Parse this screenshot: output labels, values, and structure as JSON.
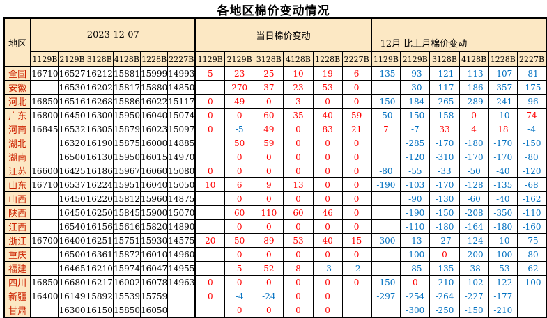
{
  "title": "各地区棉价变动情况",
  "colors": {
    "price_text": "#000000",
    "change_positive": "#FF0000",
    "change_negative": "#0070C0",
    "region_text": "#CC2200",
    "header_bg": "#FCE8C4",
    "border": "#000000"
  },
  "chart_data": {
    "type": "table",
    "title": "各地区棉价变动情况",
    "corner_label": "地区",
    "groups": [
      "2023-12-07",
      "当日棉价变动",
      "12月 比上月棉价变动"
    ],
    "grade_columns": [
      "1129B",
      "2129B",
      "3128B",
      "4128B",
      "1228B",
      "2227B"
    ],
    "rows": [
      {
        "region": "全国",
        "prices": [
          16710,
          16527,
          16212,
          15881,
          15999,
          14993
        ],
        "daily_change": [
          5,
          23,
          25,
          10,
          19,
          6
        ],
        "monthly_change": [
          -135,
          -93,
          -121,
          -113,
          -107,
          -81
        ]
      },
      {
        "region": "安徽",
        "prices": [
          "",
          16530,
          16202,
          15817,
          15880,
          14850
        ],
        "daily_change": [
          "",
          270,
          37,
          23,
          53,
          0
        ],
        "monthly_change": [
          "",
          -30,
          -117,
          -186,
          -357,
          -175
        ]
      },
      {
        "region": "河北",
        "prices": [
          16850,
          16516,
          16268,
          15886,
          16022,
          15117
        ],
        "daily_change": [
          0,
          49,
          0,
          3,
          0,
          0
        ],
        "monthly_change": [
          -150,
          -184,
          -265,
          -289,
          -241,
          -96
        ]
      },
      {
        "region": "广东",
        "prices": [
          16800,
          16450,
          16300,
          15950,
          16040,
          15074
        ],
        "daily_change": [
          0,
          0,
          60,
          35,
          40,
          59
        ],
        "monthly_change": [
          -50,
          -150,
          -158,
          0,
          -10,
          74
        ]
      },
      {
        "region": "河南",
        "prices": [
          16845,
          16532,
          16305,
          15879,
          16023,
          15097
        ],
        "daily_change": [
          0,
          -5,
          49,
          0,
          83,
          21
        ],
        "monthly_change": [
          7,
          -7,
          33,
          4,
          18,
          -4
        ]
      },
      {
        "region": "湖北",
        "prices": [
          "",
          16320,
          16190,
          15875,
          16000,
          14885
        ],
        "daily_change": [
          "",
          50,
          59,
          0,
          0,
          0
        ],
        "monthly_change": [
          "",
          -285,
          -170,
          -180,
          -170,
          -150
        ]
      },
      {
        "region": "湖南",
        "prices": [
          "",
          16500,
          16130,
          15950,
          16015,
          14970
        ],
        "daily_change": [
          "",
          0,
          0,
          0,
          0,
          0
        ],
        "monthly_change": [
          "",
          -120,
          -310,
          -170,
          -170,
          -80
        ]
      },
      {
        "region": "江苏",
        "prices": [
          16600,
          16425,
          16186,
          15967,
          16060,
          15080
        ],
        "daily_change": [
          0,
          0,
          0,
          0,
          0,
          0
        ],
        "monthly_change": [
          -80,
          -55,
          -33,
          -50,
          -40,
          -120
        ]
      },
      {
        "region": "山东",
        "prices": [
          16710,
          16537,
          16224,
          15951,
          16040,
          15050
        ],
        "daily_change": [
          10,
          6,
          9,
          13,
          0,
          0
        ],
        "monthly_change": [
          -190,
          -103,
          -170,
          -128,
          -135,
          -68
        ]
      },
      {
        "region": "山西",
        "prices": [
          "",
          16450,
          16220,
          15812,
          15960,
          14875
        ],
        "daily_change": [
          "",
          0,
          0,
          0,
          0,
          0
        ],
        "monthly_change": [
          "",
          -90,
          -130,
          -60,
          -40,
          -162
        ]
      },
      {
        "region": "陕西",
        "prices": [
          "",
          16450,
          16250,
          15845,
          15900,
          15070
        ],
        "daily_change": [
          "",
          60,
          110,
          60,
          46,
          0
        ],
        "monthly_change": [
          "",
          -190,
          -150,
          -208,
          -350,
          -110
        ]
      },
      {
        "region": "江西",
        "prices": [
          "",
          16540,
          16156,
          15616,
          15820,
          14890
        ],
        "daily_change": [
          "",
          0,
          0,
          0,
          0,
          0
        ],
        "monthly_change": [
          "",
          -110,
          -180,
          -164,
          -180,
          -160
        ]
      },
      {
        "region": "浙江",
        "prices": [
          16700,
          16400,
          16251,
          15751,
          15930,
          14575
        ],
        "daily_change": [
          20,
          50,
          89,
          53,
          40,
          15
        ],
        "monthly_change": [
          -300,
          -13,
          -27,
          -124,
          -10,
          -75
        ]
      },
      {
        "region": "重庆",
        "prices": [
          "",
          16500,
          16361,
          15872,
          16010,
          14960
        ],
        "daily_change": [
          "",
          0,
          0,
          0,
          0,
          0
        ],
        "monthly_change": [
          "",
          -100,
          0,
          -200,
          -100,
          -80
        ]
      },
      {
        "region": "福建",
        "prices": [
          "",
          16465,
          16210,
          15974,
          16047,
          14955
        ],
        "daily_change": [
          "",
          5,
          52,
          8,
          -3,
          -2
        ],
        "monthly_change": [
          "",
          -85,
          -135,
          -38,
          -53,
          -62
        ]
      },
      {
        "region": "四川",
        "prices": [
          16850,
          16680,
          16217,
          16002,
          16078,
          14963
        ],
        "daily_change": [
          0,
          0,
          0,
          0,
          0,
          0
        ],
        "monthly_change": [
          -150,
          0,
          -210,
          -102,
          -122,
          -100
        ]
      },
      {
        "region": "新疆",
        "prices": [
          16400,
          16149,
          15892,
          15539,
          15759,
          ""
        ],
        "daily_change": [
          0,
          -4,
          -24,
          0,
          0,
          ""
        ],
        "monthly_change": [
          -297,
          -254,
          -264,
          -227,
          -177,
          ""
        ]
      },
      {
        "region": "甘肃",
        "prices": [
          "",
          16300,
          16150,
          15850,
          16050,
          ""
        ],
        "daily_change": [
          "",
          0,
          0,
          0,
          0,
          ""
        ],
        "monthly_change": [
          "",
          -300,
          -250,
          -150,
          -210,
          ""
        ]
      }
    ]
  }
}
